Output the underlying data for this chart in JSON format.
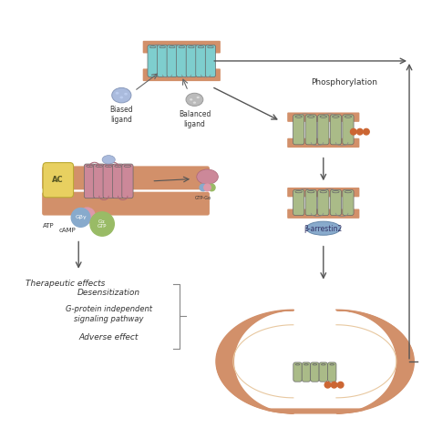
{
  "background_color": "#ffffff",
  "figure_width": 4.74,
  "figure_height": 4.92,
  "dpi": 100,
  "labels": {
    "biased_ligand": "Biased\nligand",
    "balanced_ligand": "Balanced\nligand",
    "phosphorylation": "Phosphorylation",
    "ac": "AC",
    "atp": "ATP",
    "camp": "cAMP",
    "gbeta_gamma": "Gβγ",
    "galpha_gtp": "Gα\nGTP",
    "therapeutic": "Therapeutic effects",
    "beta_arrestin": "β-arrestin2",
    "desensitization": "Desensitization",
    "g_protein_indep": "G-protein independent\nsignaling pathway",
    "adverse": "Adverse effect"
  },
  "colors": {
    "membrane_orange": "#D2906A",
    "receptor_cyan": "#7ECECE",
    "receptor_pink": "#CC8899",
    "receptor_green": "#AABB88",
    "ac_yellow": "#E8D060",
    "g_protein_blue": "#88AACC",
    "g_protein_pink": "#DD99AA",
    "g_protein_green": "#99BB66",
    "arrestin_blue": "#88AACC",
    "arrow_color": "#555555",
    "text_color": "#333333",
    "bracket_color": "#888888",
    "phospho_orange": "#CC6633",
    "biased_ligand_blue": "#AABBDD",
    "balanced_ligand_gray": "#BBBBBB"
  }
}
